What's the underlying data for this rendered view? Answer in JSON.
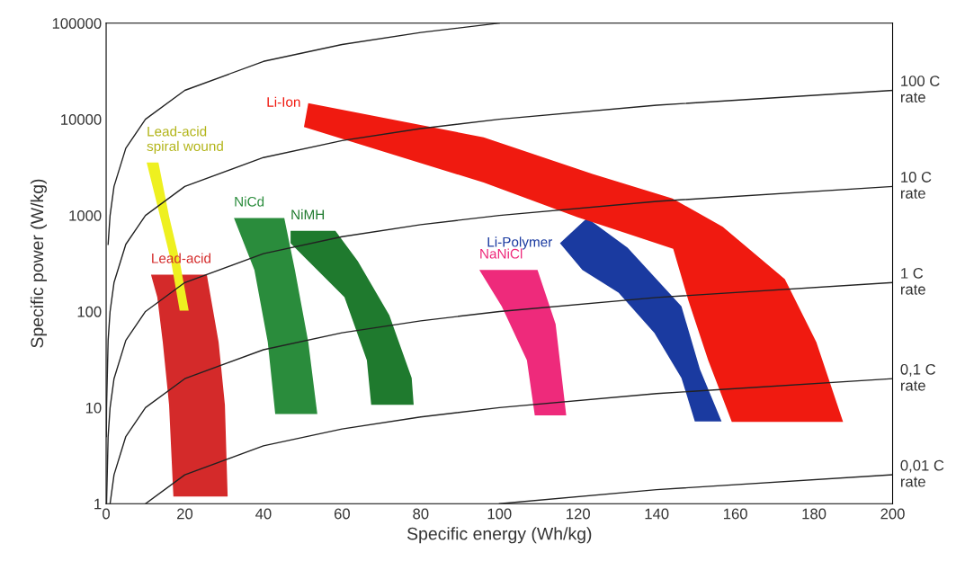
{
  "chart_data": {
    "type": "line",
    "xlabel": "Specific energy (Wh/kg)",
    "ylabel": "Specific power (W/kg)",
    "log": "y",
    "grid": false,
    "xlim": [
      0,
      200
    ],
    "xticks": [
      0,
      20,
      40,
      60,
      80,
      100,
      120,
      140,
      160,
      180,
      200
    ],
    "ylim": [
      1,
      100000
    ],
    "yticks": [
      1,
      10,
      100,
      1000,
      10000,
      100000
    ],
    "series": [
      {
        "color": "#222222",
        "x": [
          0.5,
          1,
          2,
          5,
          10,
          20,
          40,
          60,
          80,
          100
        ],
        "values": [
          500,
          1000,
          2000,
          5000,
          10000,
          20000,
          40000,
          60000,
          80000,
          100000
        ]
      },
      {
        "name": "100 C\nrate",
        "color": "#222222",
        "x": [
          0.05,
          0.1,
          0.5,
          1,
          2,
          5,
          10,
          20,
          40,
          60,
          80,
          100,
          140,
          200
        ],
        "values": [
          5,
          10,
          50,
          100,
          200,
          500,
          1000,
          2000,
          4000,
          6000,
          8000,
          10000,
          14000,
          20000
        ]
      },
      {
        "name": "10 C\nrate",
        "color": "#222222",
        "x": [
          0.1,
          0.5,
          1,
          2,
          5,
          10,
          20,
          40,
          60,
          80,
          100,
          140,
          200
        ],
        "values": [
          1,
          5,
          10,
          20,
          50,
          100,
          200,
          400,
          600,
          800,
          1000,
          1400,
          2000
        ]
      },
      {
        "name": "1 C\nrate",
        "color": "#222222",
        "x": [
          1,
          2,
          5,
          10,
          20,
          40,
          60,
          80,
          100,
          140,
          200
        ],
        "values": [
          1,
          2,
          5,
          10,
          20,
          40,
          60,
          80,
          100,
          140,
          200
        ]
      },
      {
        "name": "0,1 C\nrate",
        "color": "#222222",
        "x": [
          10,
          20,
          40,
          60,
          80,
          100,
          140,
          200
        ],
        "values": [
          1,
          2,
          4,
          6,
          8,
          10,
          14,
          20
        ]
      },
      {
        "name": "0,01 C\nrate",
        "color": "#222222",
        "x": [
          100,
          140,
          200
        ],
        "values": [
          1,
          1.4,
          2
        ]
      },
      {
        "name": "Lead-acid",
        "type": "area",
        "color": "#d42a2a",
        "x": [
          11.4,
          25.6,
          28.6,
          30.2,
          30.9,
          17.1,
          16,
          14.4,
          13
        ],
        "values": [
          242,
          242,
          48,
          10.7,
          1.19,
          1.19,
          10.7,
          48,
          141
        ]
      },
      {
        "name": "Lead-acid\nspiral wound",
        "type": "area",
        "color": "#eef020",
        "x": [
          10.3,
          13.3,
          16,
          18.7,
          21,
          18.7,
          16.5,
          13.7
        ],
        "values": [
          3550,
          3550,
          980,
          334,
          102,
          102,
          334,
          980
        ]
      },
      {
        "name": "NiCd",
        "type": "area",
        "color": "#2a8c3c",
        "x": [
          32.5,
          45.3,
          48,
          51.4,
          53.7,
          43,
          41.1,
          37.7
        ],
        "values": [
          940,
          940,
          270,
          48,
          8.6,
          8.6,
          48,
          270
        ]
      },
      {
        "name": "NiMH",
        "type": "area",
        "color": "#1f7a2e",
        "x": [
          46.9,
          58.3,
          64,
          72,
          77.7,
          78.2,
          67.4,
          66.3,
          60.6,
          50.3,
          46.9
        ],
        "values": [
          690,
          690,
          334,
          91.5,
          20.3,
          10.7,
          10.7,
          31,
          141,
          371,
          514
        ]
      },
      {
        "name": "NaNiCl",
        "type": "area",
        "color": "#ee2a7b",
        "x": [
          94.9,
          109.7,
          114.3,
          117,
          109,
          107,
          100.6
        ],
        "values": [
          270,
          270,
          74,
          8.3,
          8.3,
          31,
          113
        ]
      },
      {
        "name": "Li-Polymer",
        "type": "area",
        "color": "#1a3aa0",
        "x": [
          115.4,
          122.3,
          132.6,
          146.3,
          151,
          156.5,
          149.7,
          146.3,
          139.4,
          130.3,
          121.1
        ],
        "values": [
          514,
          940,
          460,
          113,
          25,
          7.2,
          7.2,
          20.3,
          60,
          157,
          270
        ]
      },
      {
        "name": "Li-Ion",
        "type": "area",
        "color": "#f01a10",
        "x": [
          51.4,
          96,
          123.7,
          144,
          156.8,
          172.6,
          180.6,
          187.4,
          159.1,
          153.1,
          148.1,
          144.2,
          119.8,
          96,
          50.3
        ],
        "values": [
          14700,
          6500,
          2700,
          1500,
          760,
          217,
          48,
          7.1,
          7.1,
          31,
          129,
          450,
          960,
          2200,
          8300
        ]
      }
    ]
  }
}
